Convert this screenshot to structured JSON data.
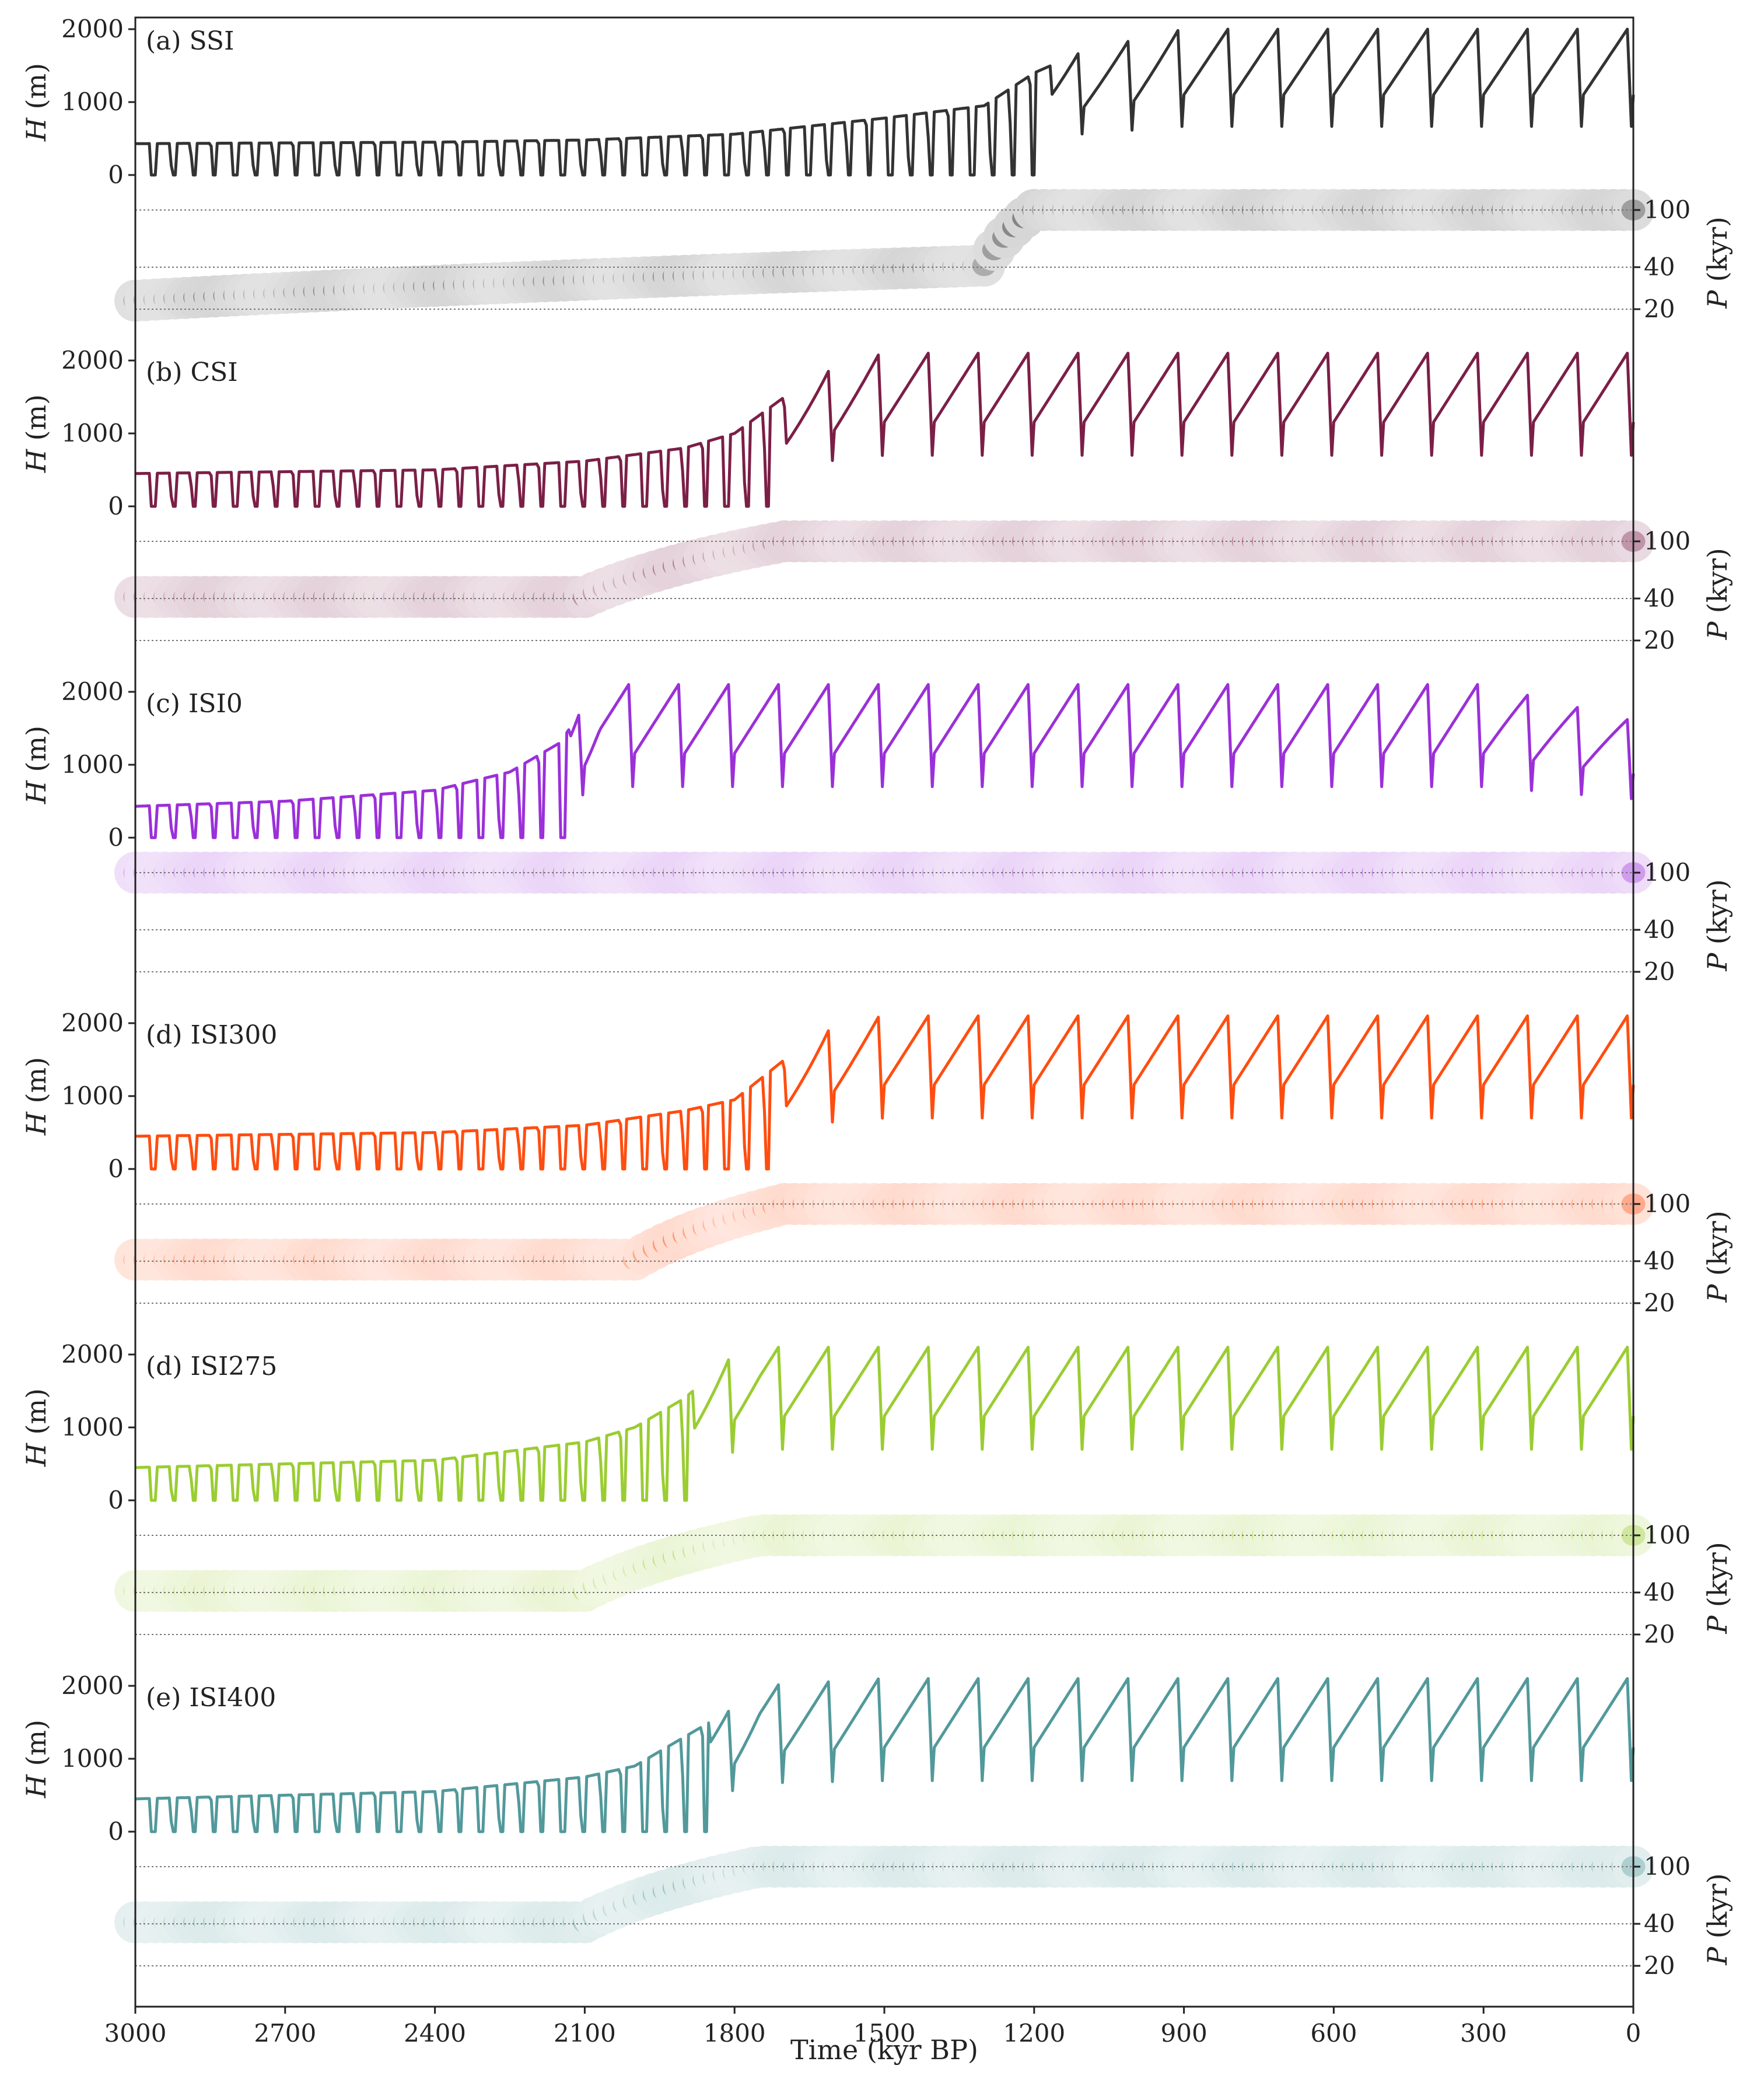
{
  "figure": {
    "x_label": "Time (kyr BP)",
    "x_ticks": [
      3000,
      2700,
      2400,
      2100,
      1800,
      1500,
      1200,
      900,
      600,
      300,
      0
    ],
    "h_axis_label_italic": "H",
    "h_axis_label_unit": "(m)",
    "h_ticks": [
      0,
      1000,
      2000
    ],
    "p_axis_label_italic": "P",
    "p_axis_label_unit": "(kyr)",
    "p_ticks": [
      100,
      40,
      20
    ]
  },
  "chart_data": [
    {
      "type": "line",
      "panel": "(a) SSI",
      "color": "#333333",
      "xlim": [
        3000,
        0
      ],
      "ylim": [
        0,
        2000
      ],
      "ylabel": "H (m)",
      "series": [
        {
          "x": [
            3000,
            2400,
            2100,
            1800,
            1500,
            1300,
            1200,
            1100,
            900,
            600,
            300,
            0
          ],
          "y": [
            430,
            450,
            480,
            560,
            780,
            950,
            1400,
            1700,
            2000,
            2000,
            2000,
            2000
          ]
        }
      ],
      "spectrum": {
        "ylabel": "P (kyr)",
        "ticks": [
          20,
          40,
          100
        ],
        "dominant_period_kyr": [
          [
            3000,
            23
          ],
          [
            1300,
            41
          ],
          [
            1200,
            100
          ],
          [
            0,
            100
          ]
        ]
      }
    },
    {
      "type": "line",
      "panel": "(b) CSI",
      "color": "#7b1f47",
      "xlim": [
        3000,
        0
      ],
      "ylim": [
        0,
        2000
      ],
      "ylabel": "H (m)",
      "series": [
        {
          "x": [
            3000,
            2400,
            2100,
            1900,
            1800,
            1700,
            1600,
            1500,
            1200,
            900,
            600,
            300,
            0
          ],
          "y": [
            450,
            500,
            620,
            800,
            1000,
            1500,
            1900,
            2100,
            2100,
            2100,
            2100,
            2100,
            2100
          ]
        }
      ],
      "spectrum": {
        "ylabel": "P (kyr)",
        "ticks": [
          20,
          40,
          100
        ],
        "dominant_period_kyr": [
          [
            3000,
            41
          ],
          [
            2100,
            41
          ],
          [
            1700,
            100
          ],
          [
            0,
            100
          ]
        ]
      }
    },
    {
      "type": "line",
      "panel": "(c) ISI0",
      "color": "#9b30d9",
      "xlim": [
        3000,
        0
      ],
      "ylim": [
        0,
        2000
      ],
      "ylabel": "H (m)",
      "series": [
        {
          "x": [
            3000,
            2700,
            2400,
            2250,
            2150,
            2070,
            1800,
            1500,
            1200,
            900,
            600,
            300,
            0
          ],
          "y": [
            430,
            500,
            650,
            900,
            1300,
            2100,
            2100,
            2100,
            2100,
            2100,
            2100,
            2100,
            1600
          ]
        }
      ],
      "spectrum": {
        "ylabel": "P (kyr)",
        "ticks": [
          20,
          40,
          100
        ],
        "dominant_period_kyr": [
          [
            3000,
            100
          ],
          [
            2050,
            100
          ],
          [
            0,
            100
          ]
        ]
      }
    },
    {
      "type": "line",
      "panel": "(d) ISI300",
      "color": "#ff4d10",
      "xlim": [
        3000,
        0
      ],
      "ylim": [
        0,
        2000
      ],
      "ylabel": "H (m)",
      "series": [
        {
          "x": [
            3000,
            2400,
            2100,
            1900,
            1800,
            1700,
            1600,
            1500,
            1200,
            900,
            600,
            300,
            0
          ],
          "y": [
            450,
            500,
            600,
            800,
            950,
            1500,
            1950,
            2100,
            2100,
            2100,
            2100,
            2100,
            2100
          ]
        }
      ],
      "spectrum": {
        "ylabel": "P (kyr)",
        "ticks": [
          20,
          40,
          100
        ],
        "dominant_period_kyr": [
          [
            3000,
            41
          ],
          [
            2000,
            41
          ],
          [
            1700,
            100
          ],
          [
            0,
            100
          ]
        ]
      }
    },
    {
      "type": "line",
      "panel": "(d) ISI275",
      "color": "#9acd32",
      "xlim": [
        3000,
        0
      ],
      "ylim": [
        0,
        2000
      ],
      "ylabel": "H (m)",
      "series": [
        {
          "x": [
            3000,
            2400,
            2100,
            2000,
            1900,
            1800,
            1750,
            1500,
            1200,
            900,
            600,
            300,
            0
          ],
          "y": [
            450,
            550,
            800,
            1000,
            1400,
            2000,
            2100,
            2100,
            2100,
            2100,
            2100,
            2100,
            2100
          ]
        }
      ],
      "spectrum": {
        "ylabel": "P (kyr)",
        "ticks": [
          20,
          40,
          100
        ],
        "dominant_period_kyr": [
          [
            3000,
            41
          ],
          [
            2100,
            41
          ],
          [
            1750,
            100
          ],
          [
            0,
            100
          ]
        ]
      }
    },
    {
      "type": "line",
      "panel": "(e) ISI400",
      "color": "#52999b",
      "xlim": [
        3000,
        0
      ],
      "ylim": [
        0,
        2000
      ],
      "ylabel": "H (m)",
      "series": [
        {
          "x": [
            3000,
            2400,
            2100,
            2000,
            1900,
            1800,
            1750,
            1500,
            1200,
            900,
            600,
            300,
            0
          ],
          "y": [
            450,
            550,
            750,
            900,
            1300,
            1700,
            2000,
            2100,
            2100,
            2100,
            2100,
            2100,
            2100
          ]
        }
      ],
      "spectrum": {
        "ylabel": "P (kyr)",
        "ticks": [
          20,
          40,
          100
        ],
        "dominant_period_kyr": [
          [
            3000,
            41
          ],
          [
            2100,
            41
          ],
          [
            1750,
            100
          ],
          [
            0,
            100
          ]
        ]
      }
    }
  ]
}
